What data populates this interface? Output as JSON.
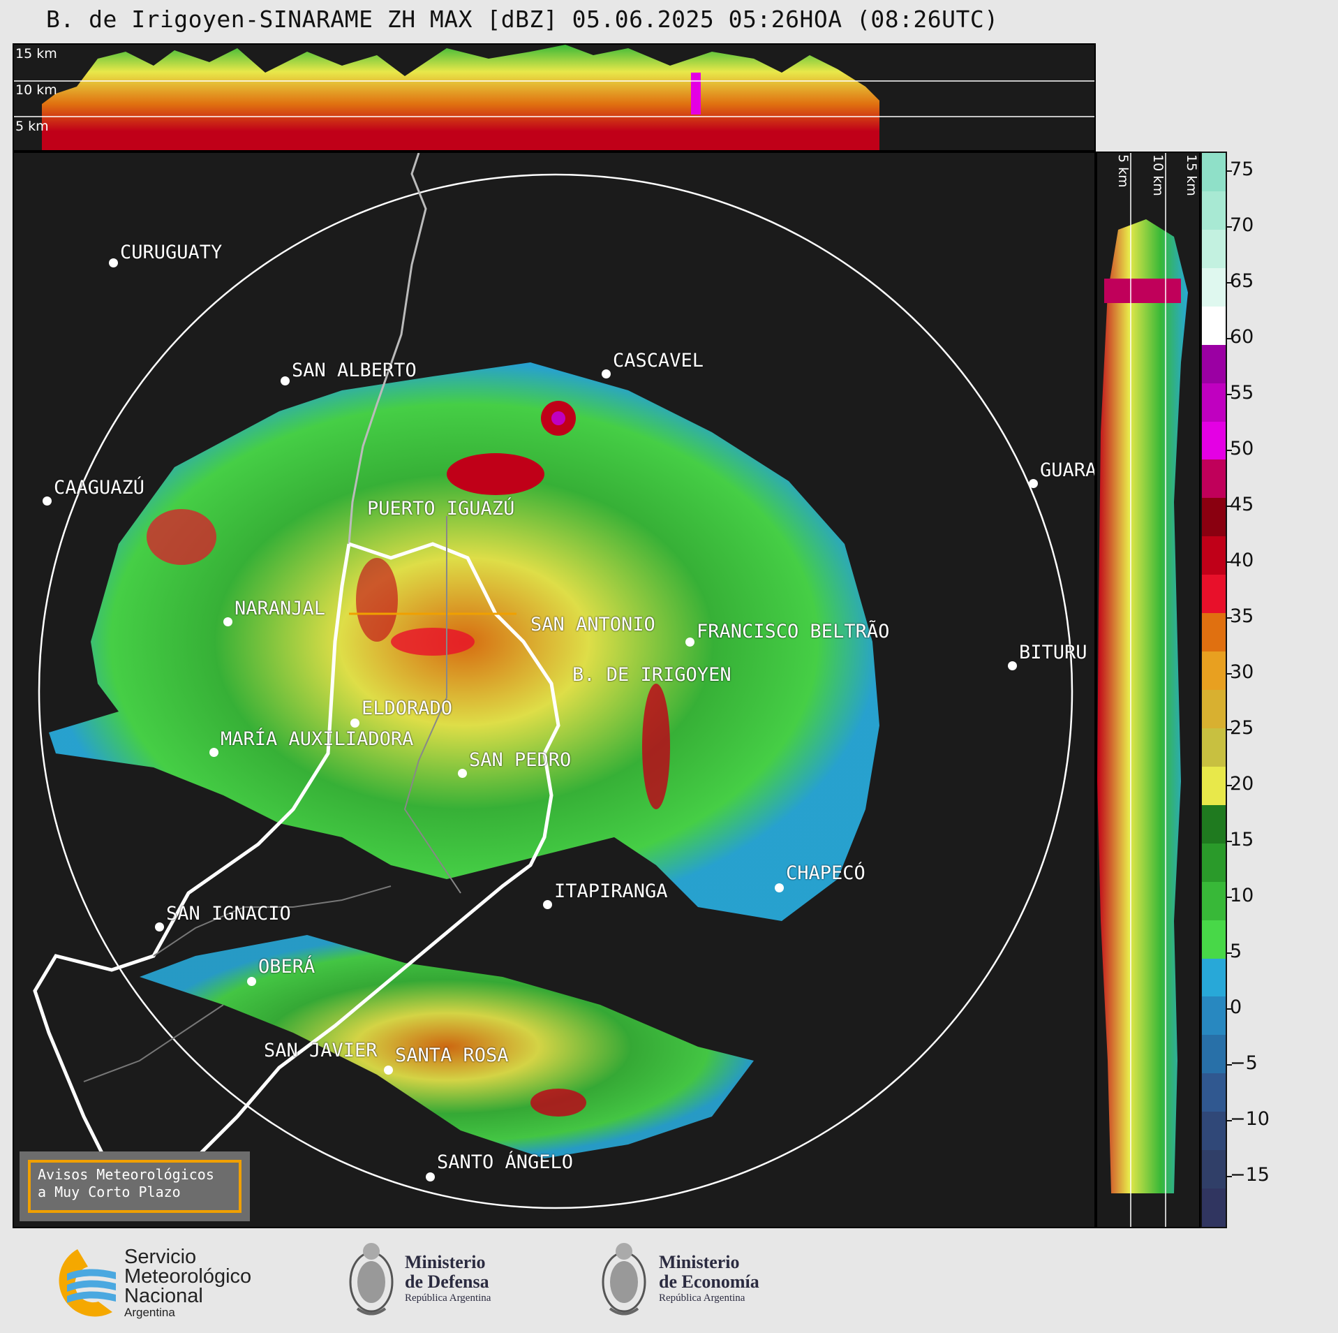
{
  "title": "B. de Irigoyen-SINARAME ZH MAX [dBZ] 05.06.2025 05:26HOA (08:26UTC)",
  "top_panel": {
    "labels": [
      "15 km",
      "10 km",
      "5 km"
    ]
  },
  "side_panel": {
    "labels": [
      "5 km",
      "10 km",
      "15 km"
    ]
  },
  "colorbar": {
    "ticks": [
      "75",
      "70",
      "65",
      "60",
      "55",
      "50",
      "45",
      "40",
      "35",
      "30",
      "25",
      "20",
      "15",
      "10",
      "5",
      "0",
      "−5",
      "−10",
      "−15"
    ],
    "colors": [
      "#8fe0c8",
      "#a8e9d3",
      "#c3f1e0",
      "#dff8ef",
      "#ffffff",
      "#9b00a3",
      "#c000c0",
      "#e400e4",
      "#c0005a",
      "#8a0010",
      "#c00018",
      "#e8102a",
      "#e07010",
      "#e8a020",
      "#d8b030",
      "#c8c040",
      "#e8e84a",
      "#1f7a1f",
      "#2a9a2a",
      "#38b838",
      "#48d848",
      "#28a8d8",
      "#2888c0",
      "#2870a8",
      "#305890",
      "#304878",
      "#303f68",
      "#303560"
    ]
  },
  "cities": [
    {
      "name": "CURUGUATY"
    },
    {
      "name": "SAN ALBERTO"
    },
    {
      "name": "CASCAVEL"
    },
    {
      "name": "CAAGUAZÚ"
    },
    {
      "name": "GUARA"
    },
    {
      "name": "PUERTO IGUAZÚ"
    },
    {
      "name": "NARANJAL"
    },
    {
      "name": "SAN ANTONIO"
    },
    {
      "name": "FRANCISCO BELTRÃO"
    },
    {
      "name": "B. DE IRIGOYEN"
    },
    {
      "name": "BITURU"
    },
    {
      "name": "ELDORADO"
    },
    {
      "name": "MARÍA AUXILIADORA"
    },
    {
      "name": "SAN PEDRO"
    },
    {
      "name": "ITAPIRANGA"
    },
    {
      "name": "CHAPECÓ"
    },
    {
      "name": "SAN IGNACIO"
    },
    {
      "name": "OBERÁ"
    },
    {
      "name": "SAN JAVIER"
    },
    {
      "name": "SANTA ROSA"
    },
    {
      "name": "SANTO ÁNGELO"
    }
  ],
  "avisos": {
    "line1": "Avisos Meteorológicos",
    "line2": "a Muy Corto Plazo"
  },
  "logos": {
    "smn": {
      "line1": "Servicio",
      "line2": "Meteorológico",
      "line3": "Nacional",
      "line4": "Argentina"
    },
    "defensa": {
      "line1": "Ministerio",
      "line2": "de Defensa",
      "line3": "República Argentina"
    },
    "economia": {
      "line1": "Ministerio",
      "line2": "de Economía",
      "line3": "República Argentina"
    }
  }
}
